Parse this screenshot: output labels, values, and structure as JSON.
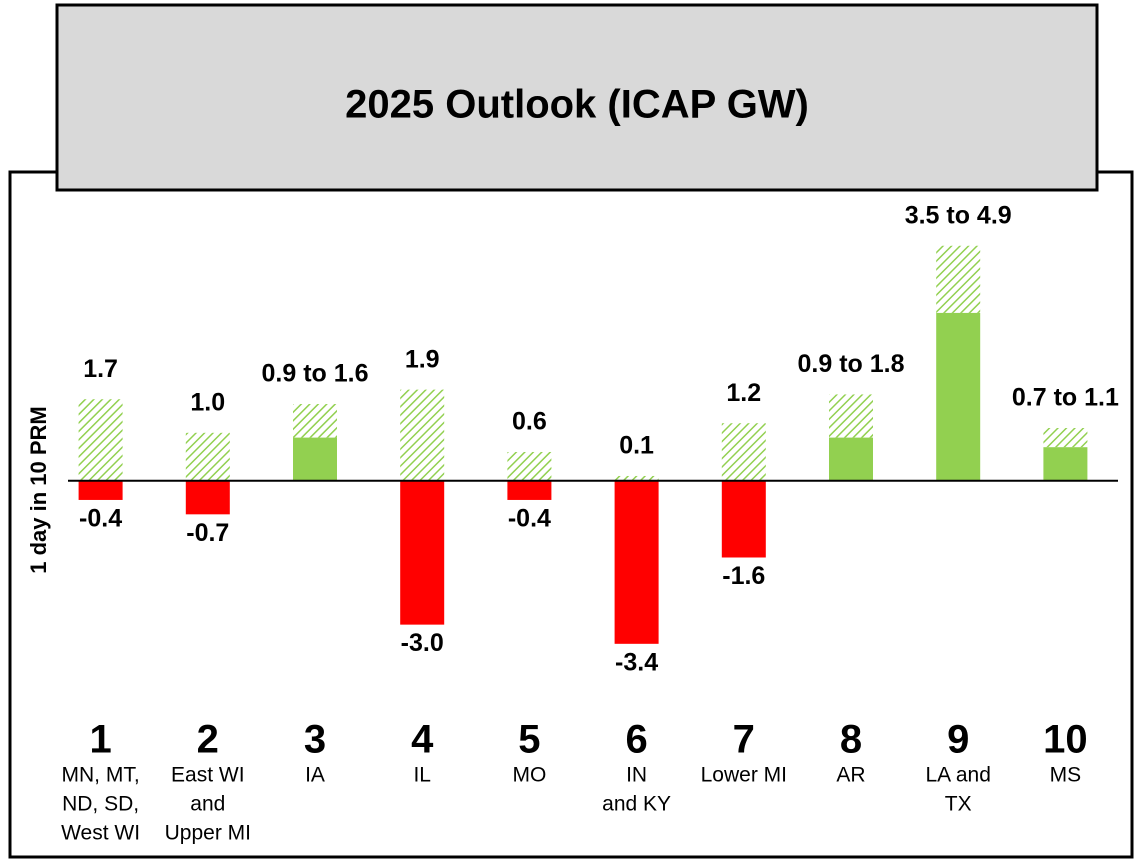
{
  "chart_data": {
    "type": "bar",
    "title": "2025 Outlook (ICAP GW)",
    "y_label": "1 day in 10 PRM",
    "categories": [
      "1",
      "2",
      "3",
      "4",
      "5",
      "6",
      "7",
      "8",
      "9",
      "10"
    ],
    "category_descriptions": [
      [
        "MN, MT,",
        "ND, SD,",
        "West WI"
      ],
      [
        "East WI",
        "and",
        "Upper MI"
      ],
      [
        "IA"
      ],
      [
        "IL"
      ],
      [
        "MO"
      ],
      [
        "IN",
        "and KY"
      ],
      [
        "Lower MI"
      ],
      [
        "AR"
      ],
      [
        "LA and",
        "TX"
      ],
      [
        "MS"
      ]
    ],
    "ylim": [
      -3.8,
      5.5
    ],
    "series": [
      {
        "color": "#92d050",
        "pattern": "hatch",
        "values": [
          1.7,
          1.0,
          1.6,
          1.9,
          0.6,
          0.1,
          1.2,
          1.8,
          4.9,
          1.1
        ],
        "value_labels": [
          "1.7",
          "1.0",
          "0.9 to 1.6",
          "1.9",
          "0.6",
          "0.1",
          "1.2",
          "0.9 to 1.8",
          "3.5 to 4.9",
          "0.7 to 1.1"
        ]
      },
      {
        "color": "#92d050",
        "values": [
          null,
          null,
          0.9,
          null,
          null,
          null,
          null,
          0.9,
          3.5,
          0.7
        ]
      },
      {
        "color": "#ff0000",
        "values": [
          -0.4,
          -0.7,
          null,
          -3.0,
          -0.4,
          -3.4,
          -1.6,
          null,
          null,
          null
        ],
        "value_labels": [
          "-0.4",
          "-0.7",
          null,
          "-3.0",
          "-0.4",
          "-3.4",
          "-1.6",
          null,
          null,
          null
        ]
      }
    ]
  }
}
